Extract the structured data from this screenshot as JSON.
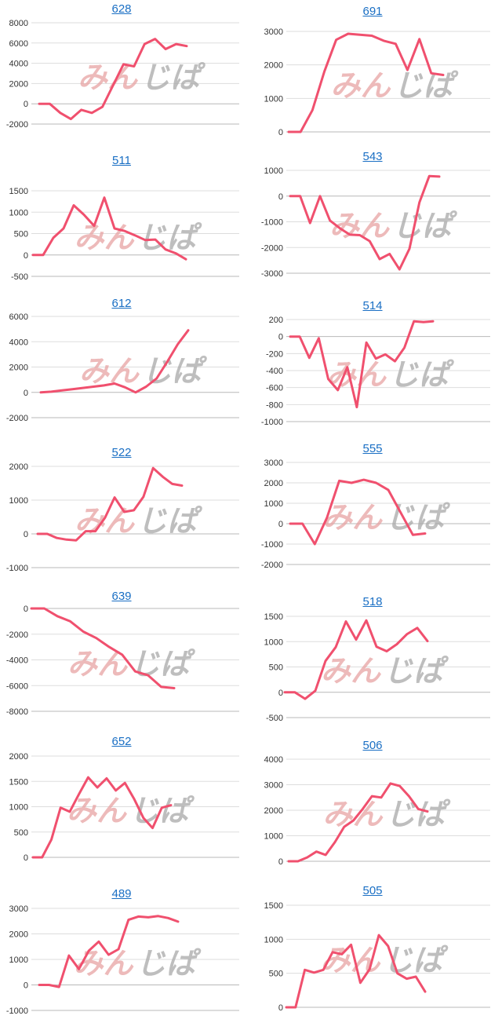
{
  "colors": {
    "line": "#f0506e",
    "title_link": "#1a6fc4"
  },
  "watermark": {
    "left": "みん",
    "right": "じぱ"
  },
  "chart_data": [
    {
      "type": "line",
      "title": "628",
      "ylim": [
        -2000,
        8000
      ],
      "yticks": [
        -2000,
        0,
        2000,
        4000,
        6000,
        8000
      ],
      "series": [
        {
          "values": [
            0,
            0,
            -900,
            -1500,
            -600,
            -900,
            -300,
            1800,
            3900,
            3700,
            5900,
            6400,
            5400,
            5900,
            5700
          ]
        }
      ]
    },
    {
      "type": "line",
      "title": "691",
      "ylim": [
        0,
        3000
      ],
      "yticks": [
        0,
        1000,
        2000,
        3000
      ],
      "series": [
        {
          "values": [
            0,
            0,
            650,
            1800,
            2750,
            2930,
            2900,
            2870,
            2720,
            2630,
            1850,
            2770,
            1750,
            1700
          ]
        }
      ]
    },
    {
      "type": "line",
      "title": "511",
      "ylim": [
        -500,
        1500
      ],
      "yticks": [
        -500,
        0,
        500,
        1000,
        1500
      ],
      "series": [
        {
          "values": [
            0,
            0,
            400,
            620,
            1160,
            940,
            680,
            1340,
            620,
            560,
            460,
            350,
            360,
            130,
            40,
            -100
          ]
        }
      ]
    },
    {
      "type": "line",
      "title": "543",
      "ylim": [
        -3000,
        1000
      ],
      "yticks": [
        -3000,
        -2000,
        -1000,
        0,
        1000
      ],
      "series": [
        {
          "values": [
            0,
            0,
            -1050,
            0,
            -950,
            -1250,
            -1500,
            -1520,
            -1750,
            -2450,
            -2250,
            -2850,
            -2050,
            -250,
            780,
            760
          ]
        }
      ]
    },
    {
      "type": "line",
      "title": "612",
      "ylim": [
        -2000,
        6000
      ],
      "yticks": [
        -2000,
        0,
        2000,
        4000,
        6000
      ],
      "series": [
        {
          "values": [
            0,
            50,
            150,
            250,
            350,
            450,
            550,
            700,
            400,
            0,
            450,
            1100,
            2400,
            3800,
            4900
          ]
        }
      ]
    },
    {
      "type": "line",
      "title": "514",
      "ylim": [
        -1000,
        200
      ],
      "yticks": [
        -1000,
        -800,
        -600,
        -400,
        -200,
        0,
        200
      ],
      "series": [
        {
          "values": [
            0,
            0,
            -250,
            -20,
            -500,
            -630,
            -360,
            -830,
            -70,
            -260,
            -210,
            -290,
            -130,
            180,
            170,
            180
          ]
        }
      ]
    },
    {
      "type": "line",
      "title": "522",
      "ylim": [
        -1000,
        2000
      ],
      "yticks": [
        -1000,
        0,
        1000,
        2000
      ],
      "series": [
        {
          "values": [
            0,
            0,
            -120,
            -170,
            -190,
            80,
            80,
            480,
            1080,
            650,
            700,
            1100,
            1950,
            1690,
            1480,
            1430
          ]
        }
      ]
    },
    {
      "type": "line",
      "title": "555",
      "ylim": [
        -2000,
        3000
      ],
      "yticks": [
        -2000,
        -1000,
        0,
        1000,
        2000,
        3000
      ],
      "series": [
        {
          "values": [
            0,
            0,
            -1000,
            300,
            2100,
            2000,
            2150,
            2000,
            1650,
            550,
            -550,
            -480
          ]
        }
      ]
    },
    {
      "type": "line",
      "title": "639",
      "ylim": [
        -8000,
        0
      ],
      "yticks": [
        -8000,
        -6000,
        -4000,
        -2000,
        0
      ],
      "series": [
        {
          "values": [
            0,
            0,
            -600,
            -1000,
            -1800,
            -2300,
            -3000,
            -3600,
            -4900,
            -5200,
            -6100,
            -6200
          ]
        }
      ]
    },
    {
      "type": "line",
      "title": "518",
      "ylim": [
        -500,
        1500
      ],
      "yticks": [
        -500,
        0,
        500,
        1000,
        1500
      ],
      "series": [
        {
          "values": [
            0,
            0,
            -130,
            30,
            620,
            890,
            1400,
            1040,
            1420,
            900,
            810,
            950,
            1150,
            1270,
            1010
          ]
        }
      ]
    },
    {
      "type": "line",
      "title": "652",
      "ylim": [
        0,
        2000
      ],
      "yticks": [
        0,
        500,
        1000,
        1500,
        2000
      ],
      "series": [
        {
          "values": [
            0,
            0,
            350,
            980,
            900,
            1250,
            1580,
            1380,
            1560,
            1320,
            1470,
            1150,
            780,
            580,
            980,
            1030
          ]
        }
      ]
    },
    {
      "type": "line",
      "title": "506",
      "ylim": [
        0,
        4000
      ],
      "yticks": [
        0,
        1000,
        2000,
        3000,
        4000
      ],
      "series": [
        {
          "values": [
            0,
            0,
            150,
            380,
            250,
            750,
            1350,
            1600,
            2050,
            2550,
            2500,
            3050,
            2950,
            2550,
            2050,
            1950
          ]
        }
      ]
    },
    {
      "type": "line",
      "title": "489",
      "ylim": [
        -1000,
        3000
      ],
      "yticks": [
        -1000,
        0,
        1000,
        2000,
        3000
      ],
      "series": [
        {
          "values": [
            0,
            0,
            -80,
            1150,
            620,
            1340,
            1700,
            1180,
            1400,
            2550,
            2680,
            2650,
            2700,
            2620,
            2480
          ]
        }
      ]
    },
    {
      "type": "line",
      "title": "505",
      "ylim": [
        0,
        1500
      ],
      "yticks": [
        0,
        500,
        1000,
        1500
      ],
      "series": [
        {
          "values": [
            0,
            0,
            550,
            510,
            550,
            810,
            780,
            920,
            360,
            560,
            1060,
            900,
            500,
            420,
            450,
            230
          ]
        }
      ]
    }
  ]
}
